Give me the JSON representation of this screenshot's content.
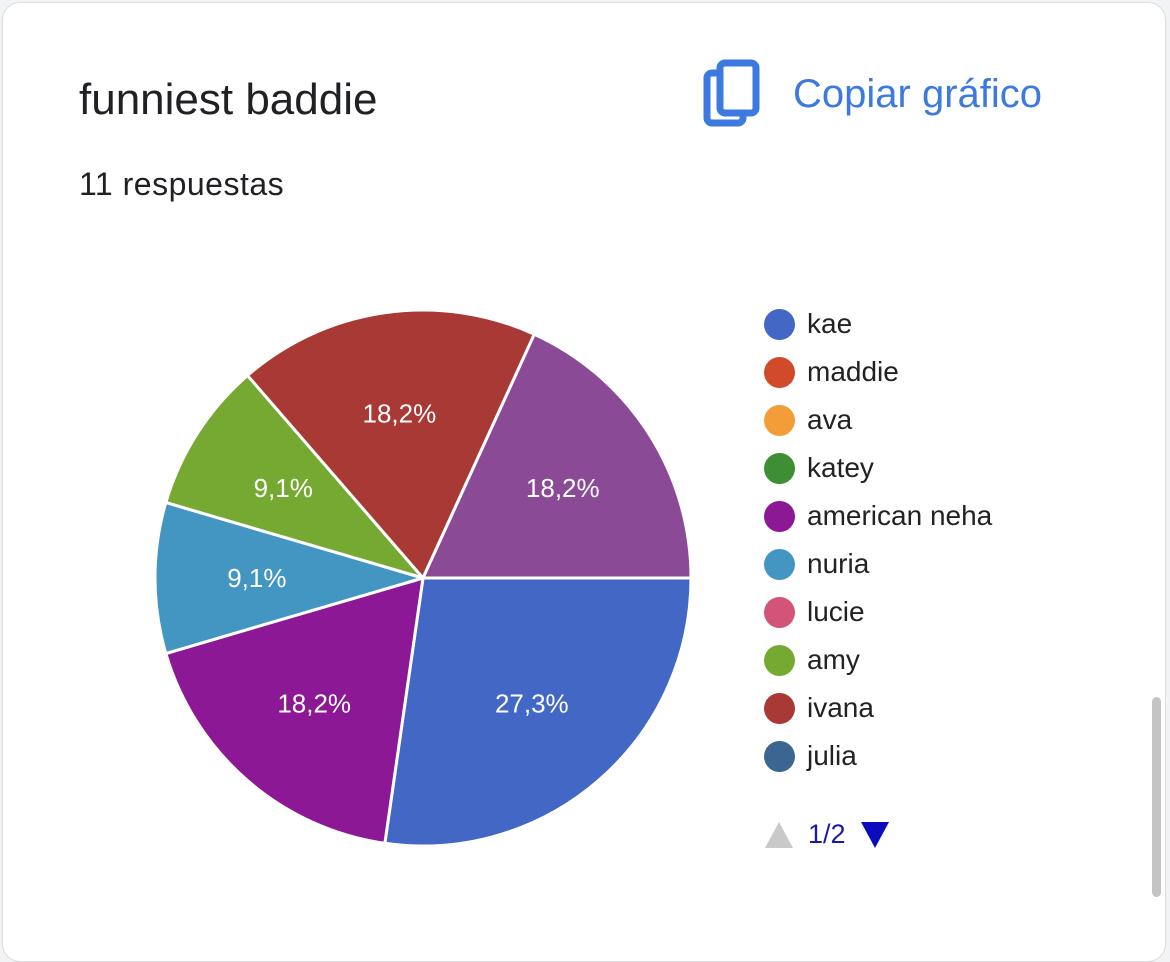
{
  "card": {
    "title": "funniest baddie",
    "subtitle": "11 respuestas",
    "copy_label": "Copiar gráfico",
    "copy_icon": "copy-icon"
  },
  "chart_data": {
    "type": "pie",
    "total_responses": 11,
    "slices": [
      {
        "name": "kae",
        "value": 27.3,
        "label": "27,3%",
        "color": "#4267c5"
      },
      {
        "name": "american neha",
        "value": 18.2,
        "label": "18,2%",
        "color": "#8c1896"
      },
      {
        "name": "nuria",
        "value": 9.1,
        "label": "9,1%",
        "color": "#4496c2"
      },
      {
        "name": "amy",
        "value": 9.1,
        "label": "9,1%",
        "color": "#76a932"
      },
      {
        "name": "ivana",
        "value": 18.2,
        "label": "18,2%",
        "color": "#a83934"
      },
      {
        "name": "",
        "value": 18.2,
        "label": "18,2%",
        "color": "#8a4a96"
      }
    ],
    "legend": [
      {
        "name": "kae",
        "color": "#4267c5"
      },
      {
        "name": "maddie",
        "color": "#d14b2a"
      },
      {
        "name": "ava",
        "color": "#f39d38"
      },
      {
        "name": "katey",
        "color": "#3e8e34"
      },
      {
        "name": "american neha",
        "color": "#8c1896"
      },
      {
        "name": "nuria",
        "color": "#4496c2"
      },
      {
        "name": "lucie",
        "color": "#d35479"
      },
      {
        "name": "amy",
        "color": "#76a932"
      },
      {
        "name": "ivana",
        "color": "#a83934"
      },
      {
        "name": "julia",
        "color": "#3c6592"
      }
    ],
    "legend_placement": "right",
    "legend_page": "1/2"
  },
  "pager": {
    "prev_icon": "triangle-up-icon",
    "next_icon": "triangle-down-icon",
    "prev_color": "#c9c9c9",
    "next_color": "#0b0bbf"
  }
}
